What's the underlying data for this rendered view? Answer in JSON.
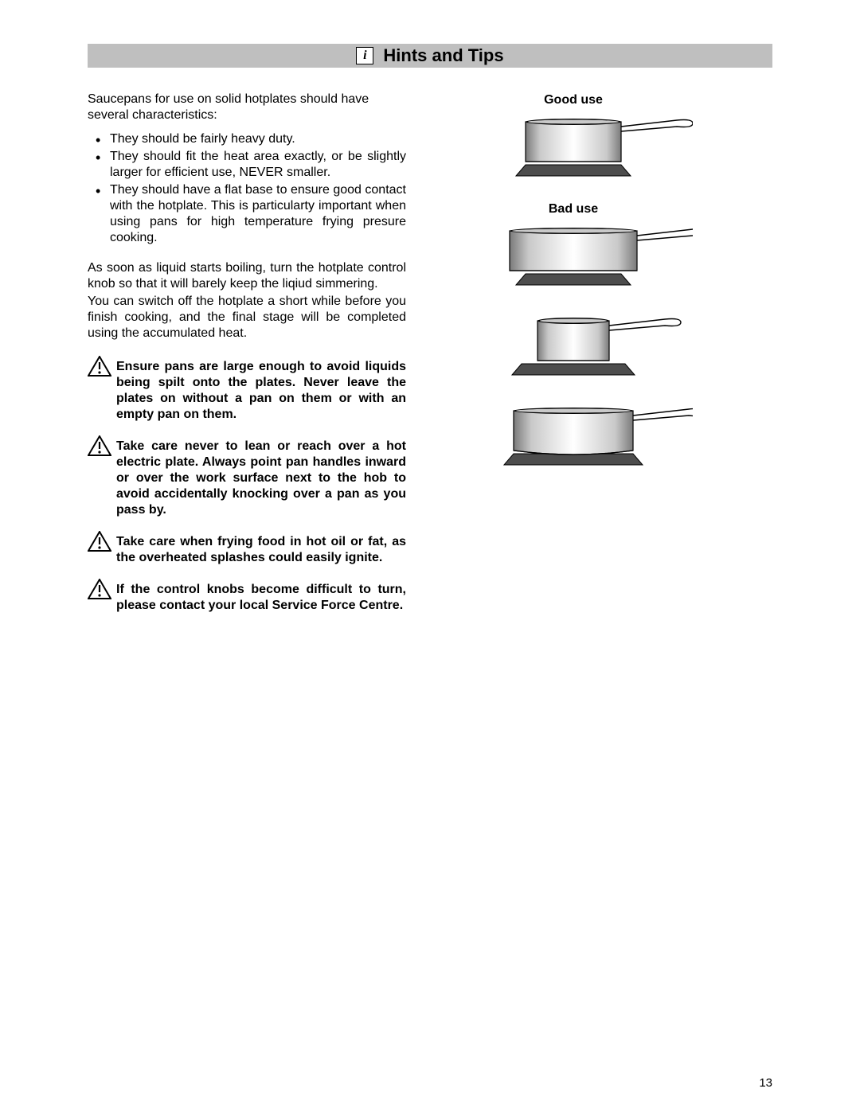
{
  "header": {
    "title": "Hints and Tips",
    "info_glyph": "i"
  },
  "intro": "Saucepans for use on solid hotplates should have several characteristics:",
  "bullets": [
    "They should be fairly heavy duty.",
    "They should fit the heat area exactly, or be slightly larger for efficient use, NEVER smaller.",
    "They should have a flat base to ensure good contact with the hotplate. This is particularty important when using pans for high temperature frying presure cooking."
  ],
  "para1": "As soon as liquid starts boiling, turn the hotplate control knob so that it will barely keep the liqiud simmering.",
  "para2": "You can switch off the hotplate a short while before you finish cooking, and the final stage will be completed using the accumulated heat.",
  "warnings": [
    "Ensure pans are large enough to avoid liquids being spilt onto the plates. Never leave the plates on without a pan on them or with an empty pan on them.",
    "Take care never to lean or reach over a hot electric plate. Always point pan handles inward or over the work surface next to the hob to avoid accidentally knocking over a pan as you pass by.",
    "Take care when frying food in hot oil or fat, as the overheated splashes could easily ignite.",
    "If the control knobs become difficult to turn, please contact your local Service Force Centre."
  ],
  "labels": {
    "good": "Good use",
    "bad": "Bad use"
  },
  "figures": {
    "good": {
      "pan_w": 120,
      "base_w": 120,
      "curved": false
    },
    "bad": [
      {
        "pan_w": 160,
        "base_w": 120,
        "curved": false
      },
      {
        "pan_w": 90,
        "base_w": 130,
        "curved": false
      },
      {
        "pan_w": 150,
        "base_w": 150,
        "curved": true
      }
    ],
    "colors": {
      "pan_light": "#ffffff",
      "pan_dark": "#7a7a7a",
      "pan_mid": "#c9c9c9",
      "rim": "#000000",
      "base_fill": "#4d4d4d",
      "handle": "#000000"
    }
  },
  "page_number": "13"
}
